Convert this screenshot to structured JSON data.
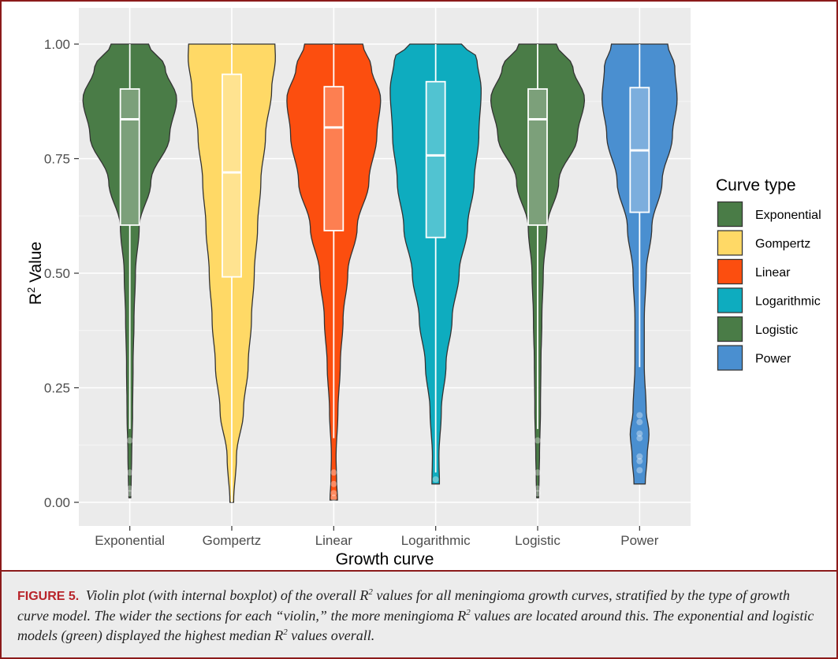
{
  "chart_data": {
    "type": "violin",
    "categories": [
      "Exponential",
      "Gompertz",
      "Linear",
      "Logarithmic",
      "Logistic",
      "Power"
    ],
    "xlabel": "Growth curve",
    "ylabel_main": "R",
    "ylabel_sup": "2",
    "ylabel_rest": " Value",
    "ylim": [
      0,
      1
    ],
    "y_ticks": [
      "0.00",
      "0.25",
      "0.50",
      "0.75",
      "1.00"
    ],
    "grid": true,
    "legend": {
      "title": "Curve type",
      "position": "right",
      "entries": [
        "Exponential",
        "Gompertz",
        "Linear",
        "Logarithmic",
        "Logistic",
        "Power"
      ]
    },
    "series": [
      {
        "name": "Exponential",
        "color": "#4a7c47",
        "min": 0.01,
        "max": 1.0,
        "q1": 0.605,
        "median": 0.836,
        "q3": 0.902,
        "whisker_low": 0.16,
        "whisker_high": 1.0,
        "outliers": [
          0.135,
          0.065,
          0.03,
          0.02
        ],
        "density": [
          [
            0.01,
            0.02
          ],
          [
            0.05,
            0.03
          ],
          [
            0.1,
            0.04
          ],
          [
            0.2,
            0.06
          ],
          [
            0.3,
            0.07
          ],
          [
            0.4,
            0.09
          ],
          [
            0.5,
            0.12
          ],
          [
            0.6,
            0.2
          ],
          [
            0.7,
            0.45
          ],
          [
            0.8,
            0.85
          ],
          [
            0.88,
            1.0
          ],
          [
            0.95,
            0.75
          ],
          [
            1.0,
            0.4
          ]
        ]
      },
      {
        "name": "Gompertz",
        "color": "#ffd966",
        "min": 0.0,
        "max": 1.0,
        "q1": 0.492,
        "median": 0.72,
        "q3": 0.934,
        "whisker_low": 0.0,
        "whisker_high": 1.0,
        "outliers": [],
        "density": [
          [
            0.0,
            0.04
          ],
          [
            0.1,
            0.1
          ],
          [
            0.2,
            0.25
          ],
          [
            0.3,
            0.35
          ],
          [
            0.4,
            0.42
          ],
          [
            0.5,
            0.48
          ],
          [
            0.6,
            0.55
          ],
          [
            0.7,
            0.62
          ],
          [
            0.8,
            0.72
          ],
          [
            0.9,
            0.85
          ],
          [
            0.97,
            0.93
          ],
          [
            1.0,
            0.92
          ]
        ]
      },
      {
        "name": "Linear",
        "color": "#fc4e0f",
        "min": 0.005,
        "max": 1.0,
        "q1": 0.593,
        "median": 0.818,
        "q3": 0.907,
        "whisker_low": 0.14,
        "whisker_high": 1.0,
        "outliers": [
          0.065,
          0.04,
          0.02,
          0.01
        ],
        "density": [
          [
            0.005,
            0.08
          ],
          [
            0.05,
            0.06
          ],
          [
            0.1,
            0.05
          ],
          [
            0.2,
            0.09
          ],
          [
            0.3,
            0.14
          ],
          [
            0.4,
            0.2
          ],
          [
            0.5,
            0.3
          ],
          [
            0.6,
            0.5
          ],
          [
            0.7,
            0.75
          ],
          [
            0.8,
            0.92
          ],
          [
            0.88,
            1.0
          ],
          [
            0.95,
            0.8
          ],
          [
            1.0,
            0.62
          ]
        ]
      },
      {
        "name": "Logarithmic",
        "color": "#0eacbf",
        "min": 0.04,
        "max": 1.0,
        "q1": 0.578,
        "median": 0.757,
        "q3": 0.918,
        "whisker_low": 0.065,
        "whisker_high": 1.0,
        "outliers": [
          0.05
        ],
        "density": [
          [
            0.04,
            0.08
          ],
          [
            0.1,
            0.07
          ],
          [
            0.2,
            0.12
          ],
          [
            0.3,
            0.22
          ],
          [
            0.4,
            0.35
          ],
          [
            0.5,
            0.5
          ],
          [
            0.6,
            0.68
          ],
          [
            0.7,
            0.82
          ],
          [
            0.8,
            0.92
          ],
          [
            0.9,
            0.97
          ],
          [
            0.97,
            0.88
          ],
          [
            1.0,
            0.55
          ]
        ]
      },
      {
        "name": "Logistic",
        "color": "#4a7c47",
        "min": 0.01,
        "max": 1.0,
        "q1": 0.605,
        "median": 0.836,
        "q3": 0.902,
        "whisker_low": 0.16,
        "whisker_high": 1.0,
        "outliers": [
          0.135,
          0.065,
          0.03,
          0.02
        ],
        "density": [
          [
            0.01,
            0.02
          ],
          [
            0.05,
            0.03
          ],
          [
            0.1,
            0.04
          ],
          [
            0.2,
            0.06
          ],
          [
            0.3,
            0.07
          ],
          [
            0.4,
            0.09
          ],
          [
            0.5,
            0.12
          ],
          [
            0.6,
            0.2
          ],
          [
            0.7,
            0.45
          ],
          [
            0.8,
            0.85
          ],
          [
            0.88,
            1.0
          ],
          [
            0.95,
            0.75
          ],
          [
            1.0,
            0.4
          ]
        ]
      },
      {
        "name": "Power",
        "color": "#4a8fd0",
        "min": 0.04,
        "max": 1.0,
        "q1": 0.633,
        "median": 0.768,
        "q3": 0.905,
        "whisker_low": 0.295,
        "whisker_high": 1.0,
        "outliers": [
          0.19,
          0.175,
          0.15,
          0.14,
          0.1,
          0.09,
          0.07
        ],
        "density": [
          [
            0.04,
            0.12
          ],
          [
            0.1,
            0.16
          ],
          [
            0.15,
            0.2
          ],
          [
            0.2,
            0.14
          ],
          [
            0.3,
            0.1
          ],
          [
            0.4,
            0.1
          ],
          [
            0.5,
            0.14
          ],
          [
            0.6,
            0.26
          ],
          [
            0.7,
            0.48
          ],
          [
            0.8,
            0.7
          ],
          [
            0.88,
            0.8
          ],
          [
            0.95,
            0.75
          ],
          [
            1.0,
            0.6
          ]
        ]
      }
    ]
  },
  "caption": {
    "label": "FIGURE 5.",
    "part1": " Violin plot (with internal boxplot) of the overall R",
    "sup1": "2",
    "part2": " values for all meningioma growth curves, stratified by the type of growth curve model. The wider the sections for each “violin,” the more meningioma R",
    "sup2": "2",
    "part3": " values are located around this. The exponential and logistic models (green) displayed the highest median R",
    "sup3": "2",
    "part4": " values overall."
  }
}
